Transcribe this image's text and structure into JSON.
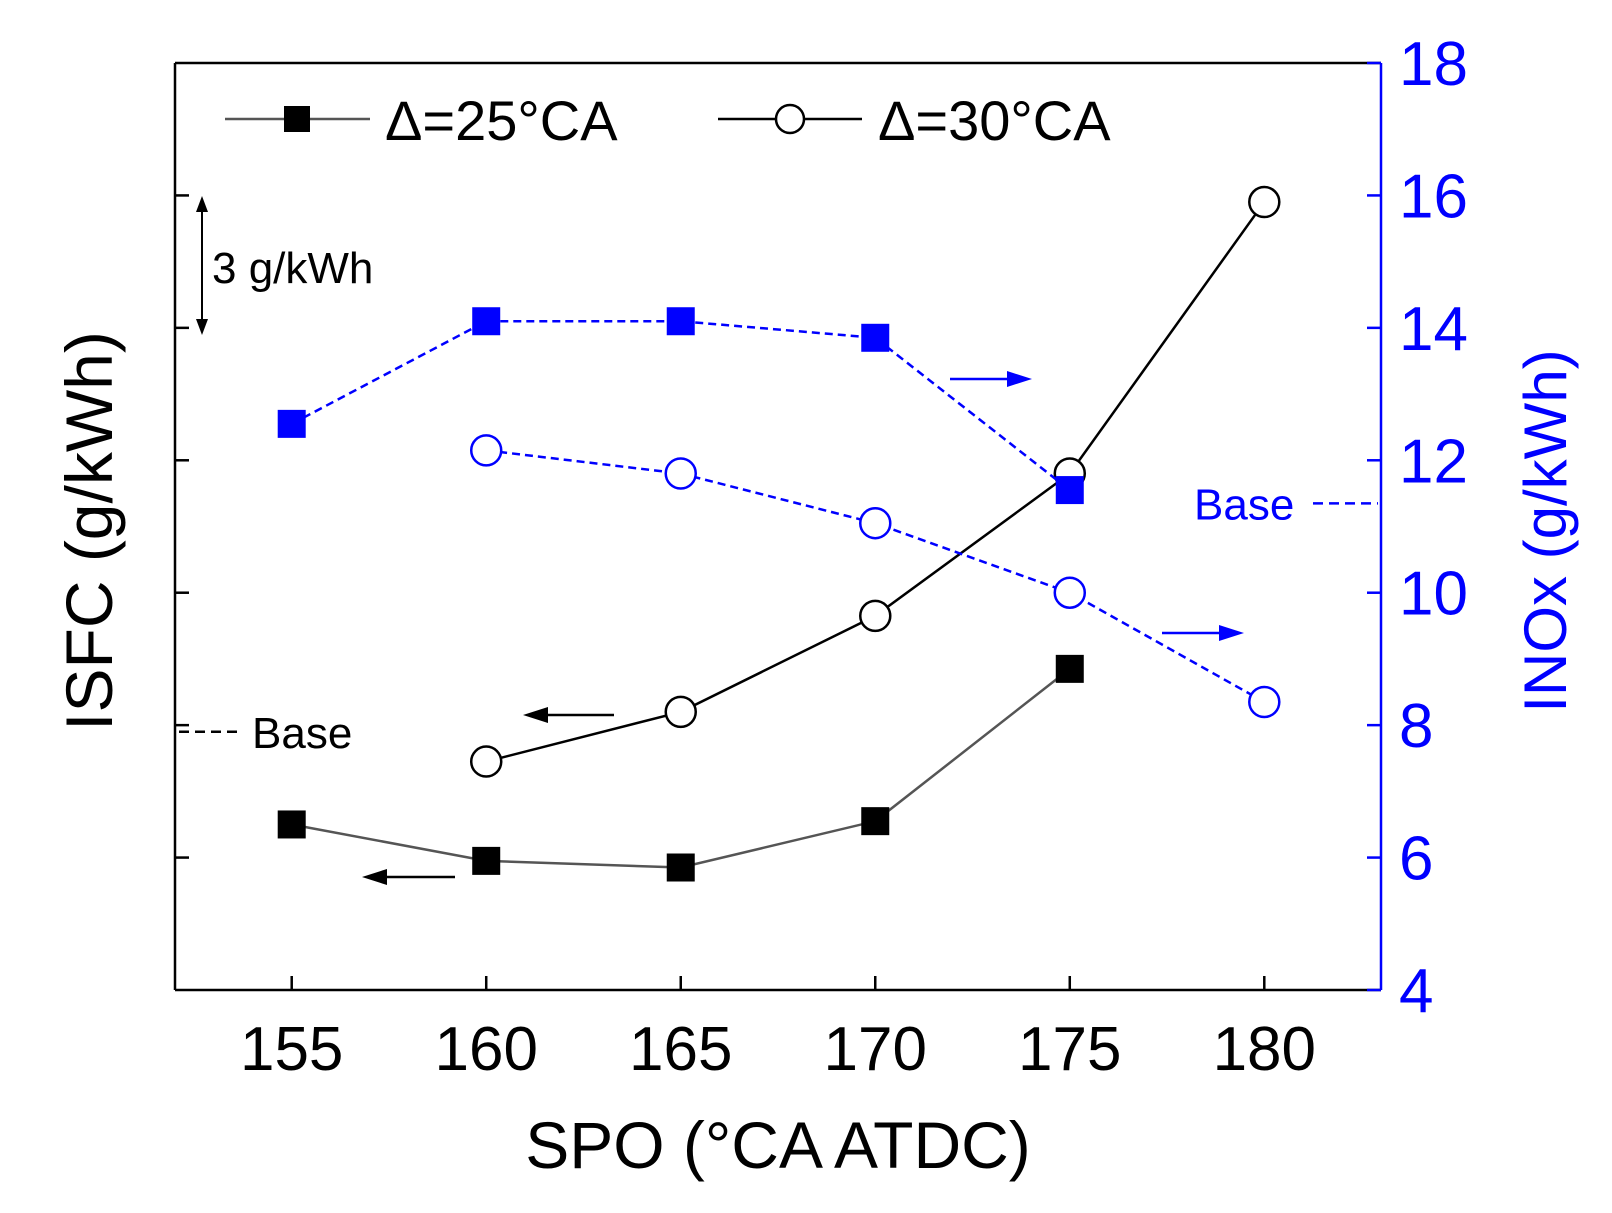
{
  "chart_data": {
    "type": "line",
    "x": [
      155,
      160,
      165,
      170,
      175,
      180
    ],
    "xlabel": "SPO (°CA ATDC)",
    "xlim": [
      152,
      183
    ],
    "xticks": [
      155,
      160,
      165,
      170,
      175,
      180
    ],
    "ylabel_left": "ISFC (g/kWh)",
    "ylabel_right": "INOx (g/kWh)",
    "y_right_lim": [
      4,
      18
    ],
    "y_right_ticks": [
      4,
      6,
      8,
      10,
      12,
      14,
      16,
      18
    ],
    "y_right_tick_labels": [
      "4",
      "6",
      "8",
      "10",
      "12",
      "14",
      "16",
      "18"
    ],
    "y_left_tick_interval_g_per_kWh": 3,
    "y_left_scale": {
      "min": 4,
      "max": 18,
      "tick_values": [
        6,
        8,
        10,
        12,
        14,
        16
      ],
      "note": "left axis unlabeled; ticks every 3 g/kWh, plotted in right-axis units"
    },
    "legend": [
      {
        "label": "Δ=25°CA",
        "marker": "square-filled",
        "line": "solid"
      },
      {
        "label": "Δ=30°CA",
        "marker": "circle-open",
        "line": "solid"
      }
    ],
    "series": [
      {
        "name": "ISFC Δ=25°CA",
        "axis": "left",
        "color": "#000000",
        "line": "solid",
        "marker": "square-filled",
        "x": [
          155,
          160,
          165,
          170,
          175
        ],
        "values": [
          6.5,
          5.95,
          5.85,
          6.55,
          8.85
        ]
      },
      {
        "name": "ISFC Δ=30°CA",
        "axis": "left",
        "color": "#000000",
        "line": "solid",
        "marker": "circle-open",
        "x": [
          160,
          165,
          170,
          175,
          180
        ],
        "values": [
          7.45,
          8.2,
          9.65,
          11.8,
          15.9
        ]
      },
      {
        "name": "INOx Δ=25°CA",
        "axis": "right",
        "color": "#0000ff",
        "line": "dashed",
        "marker": "square-filled",
        "x": [
          155,
          160,
          165,
          170,
          175
        ],
        "values": [
          12.55,
          14.1,
          14.1,
          13.85,
          11.55
        ]
      },
      {
        "name": "INOx Δ=30°CA",
        "axis": "right",
        "color": "#0000ff",
        "line": "dashed",
        "marker": "circle-open",
        "x": [
          160,
          165,
          170,
          175,
          180
        ],
        "values": [
          12.15,
          11.8,
          11.05,
          10,
          8.35
        ]
      }
    ],
    "annotations": {
      "scale_bar_label": "3 g/kWh",
      "base_left_label": "Base",
      "base_left_value": 7.9,
      "base_right_label": "Base",
      "base_right_value": 11.35
    }
  },
  "colors": {
    "axis": "#000000",
    "right_axis": "#0000ff",
    "isfc_25_line": "#555555",
    "isfc_30_line": "#000000",
    "inox": "#0000ff"
  }
}
